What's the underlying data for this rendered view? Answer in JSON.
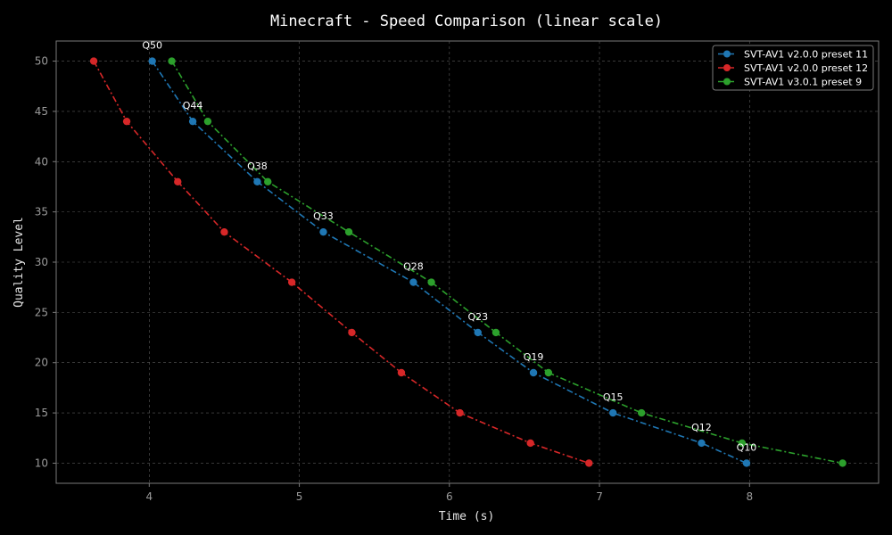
{
  "chart_data": {
    "type": "line",
    "title": "Minecraft - Speed Comparison (linear scale)",
    "xlabel": "Time (s)",
    "ylabel": "Quality Level",
    "xlim": [
      3.38,
      8.86
    ],
    "ylim": [
      8.0,
      52.0
    ],
    "xticks": [
      4,
      5,
      6,
      7,
      8
    ],
    "yticks": [
      10,
      15,
      20,
      25,
      30,
      35,
      40,
      45,
      50
    ],
    "grid": true,
    "legend_position": "top-right",
    "series": [
      {
        "name": "SVT-AV1 v2.0.0 preset 11",
        "color": "#1f77b4",
        "points": [
          [
            4.02,
            50
          ],
          [
            4.29,
            44
          ],
          [
            4.72,
            38
          ],
          [
            5.16,
            33
          ],
          [
            5.76,
            28
          ],
          [
            6.19,
            23
          ],
          [
            6.56,
            19
          ],
          [
            7.09,
            15
          ],
          [
            7.68,
            12
          ],
          [
            7.98,
            10
          ]
        ]
      },
      {
        "name": "SVT-AV1 v2.0.0 preset 12",
        "color": "#d62728",
        "points": [
          [
            3.63,
            50
          ],
          [
            3.85,
            44
          ],
          [
            4.19,
            38
          ],
          [
            4.5,
            33
          ],
          [
            4.95,
            28
          ],
          [
            5.35,
            23
          ],
          [
            5.68,
            19
          ],
          [
            6.07,
            15
          ],
          [
            6.54,
            12
          ],
          [
            6.93,
            10
          ]
        ]
      },
      {
        "name": "SVT-AV1 v3.0.1 preset 9",
        "color": "#2ca02c",
        "points": [
          [
            4.15,
            50
          ],
          [
            4.39,
            44
          ],
          [
            4.79,
            38
          ],
          [
            5.33,
            33
          ],
          [
            5.88,
            28
          ],
          [
            6.31,
            23
          ],
          [
            6.66,
            19
          ],
          [
            7.28,
            15
          ],
          [
            7.95,
            12
          ],
          [
            8.62,
            10
          ]
        ]
      }
    ],
    "annotations": [
      {
        "text": "Q50",
        "x": 4.02,
        "y": 50
      },
      {
        "text": "Q44",
        "x": 4.29,
        "y": 44
      },
      {
        "text": "Q38",
        "x": 4.72,
        "y": 38
      },
      {
        "text": "Q33",
        "x": 5.16,
        "y": 33
      },
      {
        "text": "Q28",
        "x": 5.76,
        "y": 28
      },
      {
        "text": "Q23",
        "x": 6.19,
        "y": 23
      },
      {
        "text": "Q19",
        "x": 6.56,
        "y": 19
      },
      {
        "text": "Q15",
        "x": 7.09,
        "y": 15
      },
      {
        "text": "Q12",
        "x": 7.68,
        "y": 12
      },
      {
        "text": "Q10",
        "x": 7.98,
        "y": 10
      }
    ]
  }
}
